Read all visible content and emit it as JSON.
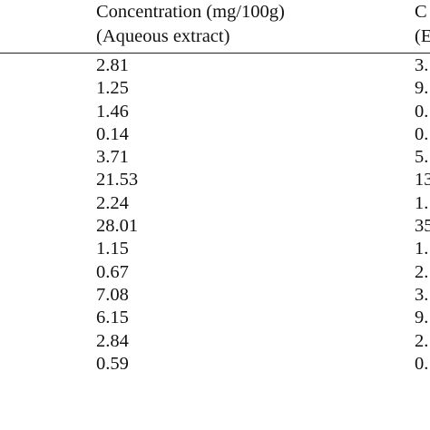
{
  "table": {
    "headers": [
      {
        "line1": "Concentration (mg/100g)",
        "line2": "(Aqueous extract)"
      },
      {
        "line1": "C",
        "line2": "(E"
      }
    ],
    "rows": [
      [
        "2.81",
        "3."
      ],
      [
        "1.25",
        "9."
      ],
      [
        "1.46",
        "0."
      ],
      [
        "0.14",
        "0."
      ],
      [
        "3.71",
        "5."
      ],
      [
        "21.53",
        "13"
      ],
      [
        "2.24",
        "1."
      ],
      [
        "28.01",
        "35"
      ],
      [
        "1.15",
        "1."
      ],
      [
        "0.67",
        "2."
      ],
      [
        "7.08",
        "3."
      ],
      [
        "6.15",
        "9."
      ],
      [
        "2.84",
        "2."
      ],
      [
        "0.59",
        "0."
      ]
    ]
  }
}
